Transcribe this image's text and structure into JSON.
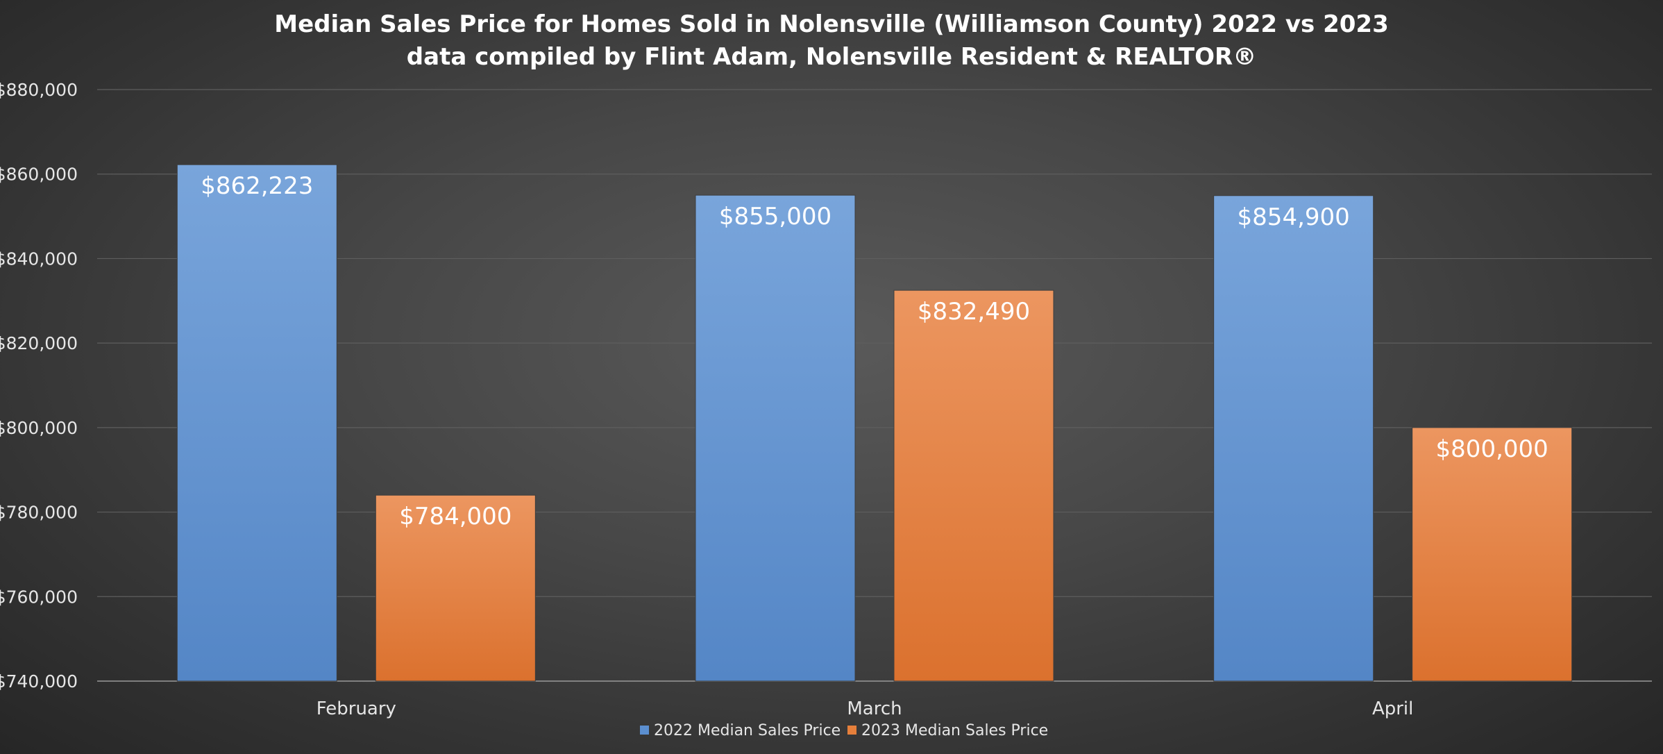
{
  "chart_data": {
    "type": "bar",
    "title": "Median Sales Price for Homes Sold in Nolensville (Williamson County) 2022 vs 2023",
    "subtitle": "data compiled by Flint Adam, Nolensville Resident & REALTOR®",
    "categories": [
      "February",
      "March",
      "April"
    ],
    "series": [
      {
        "name": "2022 Median Sales Price",
        "values": [
          862223,
          855000,
          854900
        ],
        "labels": [
          "$862,223",
          "$855,000",
          "$854,900"
        ],
        "color": "#5b8fd0"
      },
      {
        "name": "2023 Median Sales Price",
        "values": [
          784000,
          832490,
          800000
        ],
        "labels": [
          "$784,000",
          "$832,490",
          "$800,000"
        ],
        "color": "#e67f3b"
      }
    ],
    "ylim": [
      740000,
      880000
    ],
    "y_ticks": [
      740000,
      760000,
      780000,
      800000,
      820000,
      840000,
      860000,
      880000
    ],
    "y_tick_labels": [
      "$740,000",
      "$760,000",
      "$780,000",
      "$800,000",
      "$820,000",
      "$840,000",
      "$860,000",
      "$880,000"
    ],
    "xlabel": "",
    "ylabel": "",
    "grid": true,
    "legend": "bottom"
  }
}
